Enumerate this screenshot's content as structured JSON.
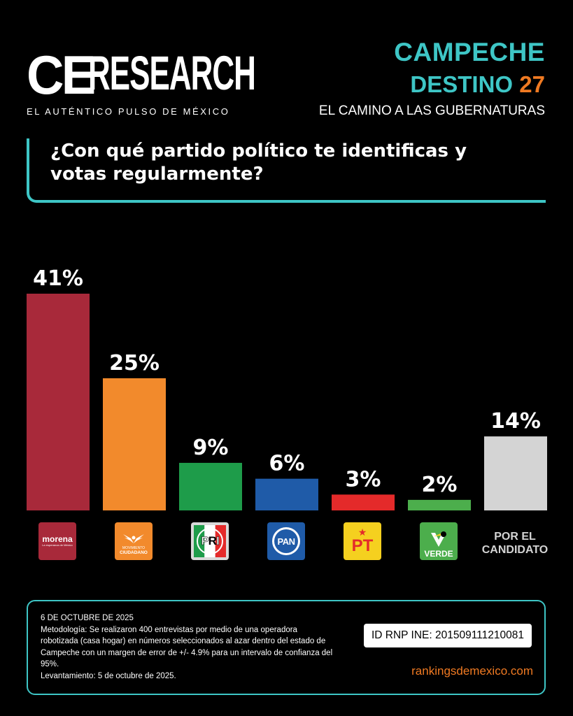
{
  "brand": {
    "logo_ce": "CE",
    "logo_research": "RESEARCH",
    "tagline": "EL AUTÉNTICO PULSO DE MÉXICO"
  },
  "header": {
    "state": "CAMPECHE",
    "destino_label": "DESTINO",
    "destino_num": "27",
    "subtitle": "EL CAMINO A LAS GUBERNATURAS"
  },
  "chart_data": {
    "type": "bar",
    "title": "¿Con qué partido político te identificas y votas regularmente?",
    "categories": [
      "morena",
      "MOVIMIENTO CIUDADANO",
      "PRI",
      "PAN",
      "PT",
      "VERDE",
      "POR EL CANDIDATO"
    ],
    "values": [
      41,
      25,
      9,
      6,
      3,
      2,
      14
    ],
    "value_labels": [
      "41%",
      "25%",
      "9%",
      "6%",
      "3%",
      "2%",
      "14%"
    ],
    "colors": [
      "#a8293a",
      "#f28a2c",
      "#1e9c4a",
      "#1f5ba8",
      "#e42a2a",
      "#4cae4c",
      "#d4d4d4"
    ],
    "ylim": [
      0,
      41
    ],
    "grid": false,
    "legend": "none"
  },
  "party_logos": {
    "morena": {
      "name": "morena",
      "sub": "La esperanza de México"
    },
    "mc": {
      "line1": "MOVIMIENTO",
      "line2": "CIUDADANO"
    },
    "pri": {
      "p": "P",
      "r": "R",
      "i": "I"
    },
    "pan": {
      "text": "PAN"
    },
    "pt": {
      "star": "★",
      "text": "PT"
    },
    "verde": {
      "text": "VERDE"
    },
    "candidato": {
      "line1": "POR EL",
      "line2": "CANDIDATO"
    }
  },
  "footer": {
    "date": "6 DE OCTUBRE DE 2025",
    "methodology": "Metodología: Se realizaron 400 entrevistas por medio de una operadora robotizada (casa hogar) en números seleccionados al azar dentro del estado de Campeche con un margen de error de +/- 4.9% para un intervalo de confianza del 95%.",
    "fieldwork": "Levantamiento: 5 de octubre de 2025.",
    "rnp": "ID RNP INE: 201509111210081",
    "website": "rankingsdemexico.com"
  }
}
